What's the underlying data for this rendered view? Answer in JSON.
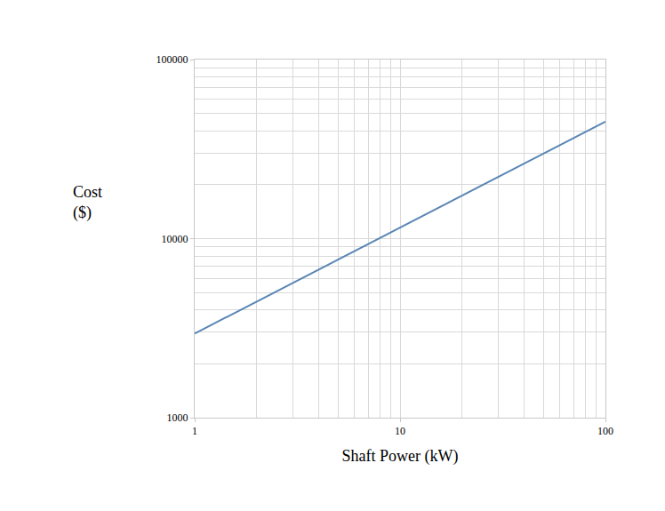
{
  "chart_data": {
    "type": "line",
    "xlabel": "Shaft Power (kW)",
    "ylabel": "Cost\n($)",
    "x": [
      1,
      10,
      100
    ],
    "values": [
      2950,
      11500,
      45000
    ],
    "color": "#5b87b5",
    "xlim": [
      1,
      100
    ],
    "ylim": [
      1000,
      100000
    ],
    "xticks": [
      1,
      10,
      100
    ],
    "yticks": [
      1000,
      10000,
      100000
    ],
    "log": true,
    "grid": true
  }
}
